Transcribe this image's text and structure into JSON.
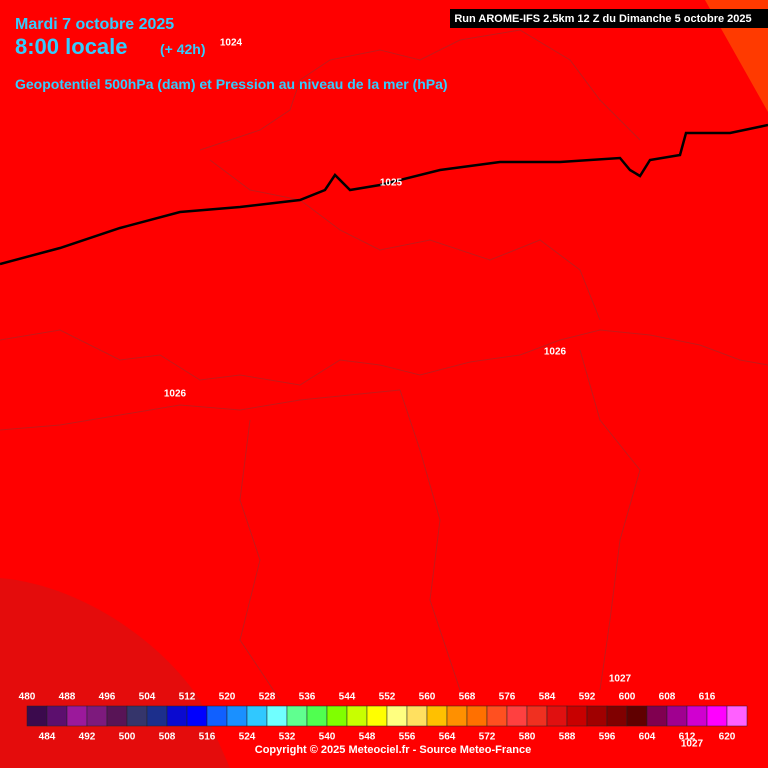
{
  "header": {
    "date": "Mardi 7 octobre 2025",
    "time": "8:00 locale",
    "lead": "(+ 42h)",
    "subtitle": "Geopotentiel 500hPa (dam) et Pression au niveau de la mer (hPa)",
    "run": "Run AROME-IFS 2.5km 12 Z du Dimanche 5 octobre 2025"
  },
  "isobar_labels": [
    "1024",
    "1025",
    "1026",
    "1026",
    "1027",
    "1027"
  ],
  "colorbar": {
    "levels": [
      480,
      484,
      488,
      492,
      496,
      500,
      504,
      508,
      512,
      516,
      520,
      524,
      528,
      532,
      536,
      540,
      544,
      548,
      552,
      556,
      560,
      564,
      568,
      572,
      576,
      580,
      584,
      588,
      592,
      596,
      600,
      604,
      608,
      612,
      616,
      620
    ],
    "colors": [
      "#3b0a4d",
      "#5c0f6e",
      "#9b199b",
      "#7d1a7d",
      "#581456",
      "#35356b",
      "#1c2f8c",
      "#0a0ad0",
      "#0000ff",
      "#1060ff",
      "#1a90ff",
      "#30c8ff",
      "#70ffff",
      "#60ff90",
      "#50ff50",
      "#80ff00",
      "#c8ff00",
      "#ffff00",
      "#ffff80",
      "#ffe060",
      "#ffc000",
      "#ff9000",
      "#ff7000",
      "#ff5020",
      "#ff4040",
      "#f03020",
      "#e01010",
      "#c80000",
      "#a00000",
      "#800000",
      "#600000",
      "#800050",
      "#a00090",
      "#d000d0",
      "#ff00ff",
      "#ff60ff"
    ]
  },
  "copyright": "Copyright © 2025 Meteociel.fr - Source Meteo-France"
}
